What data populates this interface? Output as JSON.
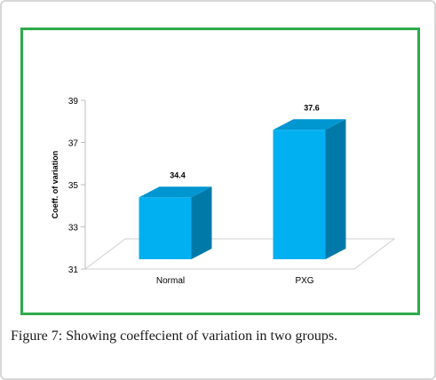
{
  "caption": {
    "label": "Figure 7:",
    "text": "Showing coeffecient of variation in two groups."
  },
  "colors": {
    "frame_border": "#2eab4b",
    "bar_front": "#00b0f0",
    "bar_side": "#0079a8",
    "bar_top": "#0096d0"
  },
  "chart_data": {
    "type": "bar",
    "categories": [
      "Normal",
      "PXG"
    ],
    "values": [
      34.4,
      37.6
    ],
    "data_labels": [
      "34.4",
      "37.6"
    ],
    "ylabel": "Coeff. of variation",
    "ylim": [
      31,
      39
    ],
    "yticks": [
      31,
      33,
      35,
      37,
      39
    ],
    "grid": false,
    "legend": "none",
    "style": "3d-column"
  }
}
